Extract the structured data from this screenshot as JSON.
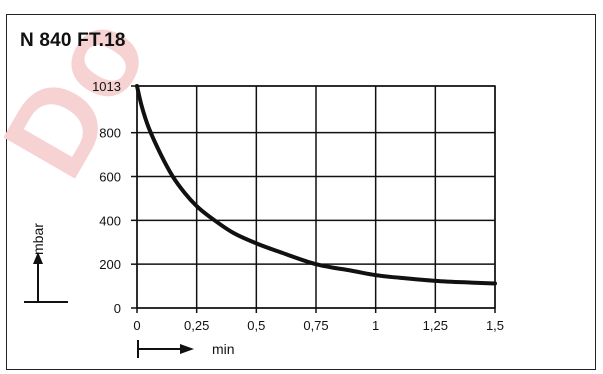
{
  "title": "N 840 FT.18",
  "chart_data": {
    "type": "line",
    "title": "N 840 FT.18",
    "xlabel": "min",
    "ylabel": "mbar",
    "xlim": [
      0,
      1.5
    ],
    "ylim": [
      0,
      1013
    ],
    "grid": true,
    "x_ticks": [
      {
        "value": 0,
        "label": "0"
      },
      {
        "value": 0.25,
        "label": "0,25"
      },
      {
        "value": 0.5,
        "label": "0,5"
      },
      {
        "value": 0.75,
        "label": "0,75"
      },
      {
        "value": 1,
        "label": "1"
      },
      {
        "value": 1.25,
        "label": "1,25"
      },
      {
        "value": 1.5,
        "label": "1,5"
      }
    ],
    "y_ticks": [
      {
        "value": 0,
        "label": "0"
      },
      {
        "value": 200,
        "label": "200"
      },
      {
        "value": 400,
        "label": "400"
      },
      {
        "value": 600,
        "label": "600"
      },
      {
        "value": 800,
        "label": "800"
      },
      {
        "value": 1013,
        "label": "1013"
      }
    ],
    "series": [
      {
        "x": [
          0,
          0.02,
          0.05,
          0.1,
          0.15,
          0.2,
          0.25,
          0.3,
          0.4,
          0.5,
          0.6,
          0.75,
          0.9,
          1.0,
          1.1,
          1.25,
          1.4,
          1.5
        ],
        "y": [
          1013,
          920,
          820,
          700,
          600,
          525,
          465,
          420,
          345,
          295,
          255,
          200,
          170,
          150,
          138,
          124,
          116,
          112
        ]
      }
    ],
    "color": "#111111"
  },
  "watermark_color": "#f5c8c8"
}
